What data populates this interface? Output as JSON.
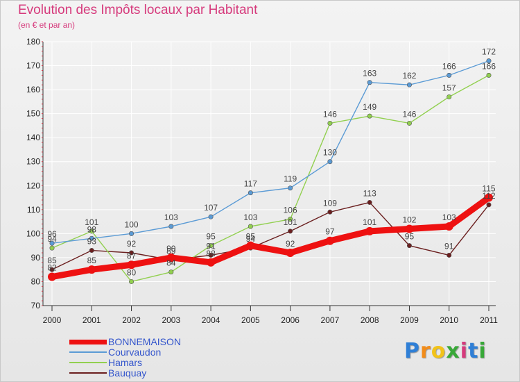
{
  "chart_data": {
    "type": "line",
    "title": "Evolution des Impôts locaux par Habitant",
    "subtitle": "(en € et par an)",
    "xlabel": "",
    "ylabel": "",
    "ylim": [
      70,
      180
    ],
    "yticks": [
      "70",
      "80",
      "90",
      "100",
      "110",
      "120",
      "130",
      "140",
      "150",
      "160",
      "170",
      "180"
    ],
    "categories": [
      "2000",
      "2001",
      "2002",
      "2003",
      "2004",
      "2005",
      "2006",
      "2007",
      "2008",
      "2009",
      "2010",
      "2011"
    ],
    "series": [
      {
        "name": "BONNEMAISON",
        "color": "#ee1111",
        "values": [
          82,
          85,
          87,
          90,
          88,
          95,
          92,
          97,
          101,
          102,
          103,
          115
        ],
        "labels": [
          "82",
          "85",
          "87",
          "90",
          "88",
          "95",
          "92",
          "97",
          "101",
          "102",
          "103",
          "115"
        ]
      },
      {
        "name": "Courvaudon",
        "color": "#5b9bd5",
        "values": [
          96,
          98,
          100,
          103,
          107,
          117,
          119,
          130,
          163,
          162,
          166,
          172
        ],
        "labels": [
          "96",
          "98",
          "100",
          "103",
          "107",
          "117",
          "119",
          "130",
          "163",
          "162",
          "166",
          "172"
        ]
      },
      {
        "name": "Hamars",
        "color": "#92d050",
        "values": [
          94,
          101,
          80,
          84,
          95,
          103,
          106,
          146,
          149,
          146,
          157,
          166
        ],
        "labels": [
          "94",
          "101",
          "80",
          "84",
          "95",
          "103",
          "106",
          "146",
          "149",
          "146",
          "157",
          "166"
        ]
      },
      {
        "name": "Bauquay",
        "color": "#6b1f1f",
        "values": [
          85,
          93,
          92,
          89,
          91,
          94,
          101,
          109,
          113,
          95,
          91,
          112
        ],
        "labels": [
          "85",
          "93",
          "92",
          "89",
          "91",
          "94",
          "101",
          "109",
          "113",
          "95",
          "91",
          "112"
        ]
      }
    ]
  },
  "legend": {
    "items": [
      {
        "label": "BONNEMAISON",
        "color": "#ee1111"
      },
      {
        "label": "Courvaudon",
        "color": "#5b9bd5"
      },
      {
        "label": "Hamars",
        "color": "#92d050"
      },
      {
        "label": "Bauquay",
        "color": "#6b1f1f"
      }
    ]
  },
  "logo": {
    "letters": [
      "P",
      "r",
      "o",
      "x",
      "i",
      "t",
      "i"
    ],
    "colors": [
      "#2f7fd6",
      "#f28c1a",
      "#f2c31a",
      "#38a838",
      "#d63a7c",
      "#2f7fd6",
      "#38a838"
    ]
  }
}
